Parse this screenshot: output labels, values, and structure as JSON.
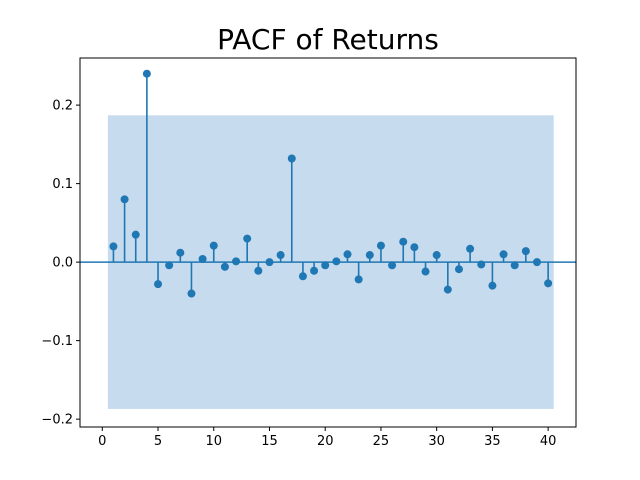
{
  "chart_data": {
    "type": "stem",
    "title": "PACF of Returns",
    "xlabel": "",
    "ylabel": "",
    "xlim": [
      -2,
      42.5
    ],
    "ylim": [
      -0.21,
      0.26
    ],
    "x_ticks": [
      0,
      5,
      10,
      15,
      20,
      25,
      30,
      35,
      40
    ],
    "y_ticks": [
      -0.2,
      -0.1,
      0.0,
      0.1,
      0.2
    ],
    "y_tick_labels": [
      "−0.2",
      "−0.1",
      "0.0",
      "0.1",
      "0.2"
    ],
    "confidence_band": {
      "x_range": [
        0.5,
        40.5
      ],
      "lower": -0.187,
      "upper": 0.187
    },
    "series": [
      {
        "lags": [
          1,
          2,
          3,
          4,
          5,
          6,
          7,
          8,
          9,
          10,
          11,
          12,
          13,
          14,
          15,
          16,
          17,
          18,
          19,
          20,
          21,
          22,
          23,
          24,
          25,
          26,
          27,
          28,
          29,
          30,
          31,
          32,
          33,
          34,
          35,
          36,
          37,
          38,
          39,
          40
        ],
        "values": [
          0.02,
          0.08,
          0.035,
          0.24,
          -0.028,
          -0.004,
          0.012,
          -0.04,
          0.004,
          0.021,
          -0.006,
          0.001,
          0.03,
          -0.011,
          0.0,
          0.009,
          0.132,
          -0.018,
          -0.011,
          -0.004,
          0.001,
          0.01,
          -0.022,
          0.009,
          0.021,
          -0.004,
          0.026,
          0.019,
          -0.012,
          0.009,
          -0.035,
          -0.009,
          0.017,
          -0.003,
          -0.03,
          0.01,
          -0.004,
          0.014,
          0.0,
          -0.027
        ]
      }
    ],
    "colors": {
      "stem": "#1f77b4",
      "band": "#c6dbed",
      "zero_line": "#1f77b4"
    },
    "grid": false
  }
}
